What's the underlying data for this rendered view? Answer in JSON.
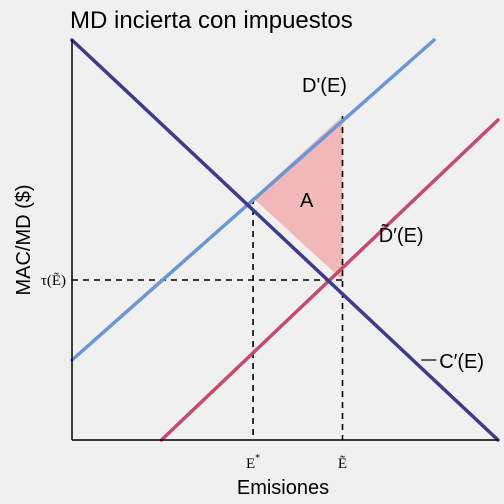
{
  "chart_data": {
    "type": "line",
    "title": "MD incierta con impuestos",
    "xlabel": "Emisiones",
    "ylabel": "MAC/MD ($)",
    "xlim": [
      0,
      10
    ],
    "ylim": [
      0,
      10
    ],
    "series": [
      {
        "name": "D'(E)",
        "color": "#6a96d4",
        "points": [
          [
            0,
            2
          ],
          [
            8.5,
            10
          ]
        ]
      },
      {
        "name": "D̃′(E)",
        "color": "#c44b6c",
        "points": [
          [
            2.1,
            0
          ],
          [
            10,
            8.0
          ]
        ]
      },
      {
        "name": "C′(E)",
        "color": "#3f3a8a",
        "points": [
          [
            0,
            10
          ],
          [
            10,
            0
          ]
        ]
      }
    ],
    "x_ticks": [
      {
        "label": "E",
        "superscript": "*",
        "value": 4.25
      },
      {
        "label": "Ẽ",
        "value": 6.35
      }
    ],
    "y_ticks": [
      {
        "label": "τ(Ẽ)",
        "value": 4.0
      }
    ],
    "region": {
      "label": "A",
      "color": "#f0b8b8",
      "points": [
        [
          4.25,
          6.05
        ],
        [
          6.35,
          8.1
        ],
        [
          6.35,
          4.0
        ]
      ]
    },
    "grid": false
  }
}
